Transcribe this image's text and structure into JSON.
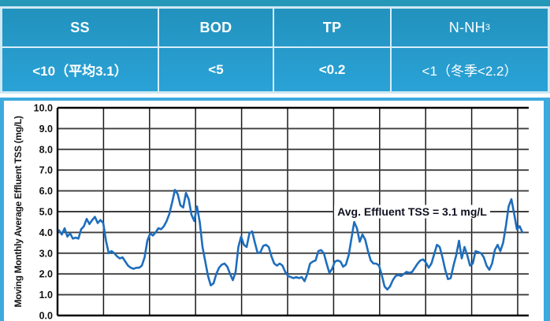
{
  "colors": {
    "table_fill_top": "#2292bd",
    "table_fill_bottom": "#2aa2d7",
    "table_divider": "#d9eefa",
    "panel_border_cyan": "#3caade",
    "top_strip_teal": "#2598b8",
    "line_blue": "#1e6ebd",
    "gridline_dark": "#3d3d3d",
    "axis_black": "#000000",
    "annotation_text": "#101020"
  },
  "table": {
    "columns": [
      {
        "header": "SS",
        "header_sub": "",
        "value": "<10（平均3.1）"
      },
      {
        "header": "BOD",
        "header_sub": "",
        "value": "<5"
      },
      {
        "header": "TP",
        "header_sub": "",
        "value": "<0.2"
      },
      {
        "header": "N-NH",
        "header_sub": "3",
        "value": "<1（冬季<2.2）"
      }
    ]
  },
  "chart_data": {
    "type": "line",
    "title": "",
    "xlabel": "",
    "ylabel": "Moving Monthly Average Effluent TSS (mg/L)",
    "ylim": [
      0,
      10
    ],
    "ytick_labels": [
      "10.0",
      "9.0",
      "8.0",
      "7.0",
      "6.0",
      "5.0",
      "4.0",
      "3.0",
      "2.0",
      "1.0",
      "0.0"
    ],
    "x_gridline_count": 10,
    "grid": true,
    "legend_position": "none",
    "annotation": "Avg. Effluent TSS = 3.1 mg/L",
    "annotation_y_value": 5.0,
    "average_value_mg_per_L": 3.1,
    "series": [
      {
        "name": "Moving monthly average effluent TSS",
        "values": [
          4.1,
          3.9,
          4.2,
          3.8,
          3.95,
          3.7,
          3.75,
          3.7,
          4.15,
          4.3,
          4.65,
          4.4,
          4.6,
          4.75,
          4.45,
          4.6,
          4.45,
          3.6,
          3.0,
          3.1,
          3.0,
          2.85,
          2.75,
          2.8,
          2.6,
          2.4,
          2.3,
          2.25,
          2.3,
          2.3,
          2.4,
          2.8,
          3.6,
          3.95,
          3.85,
          4.0,
          4.2,
          4.15,
          4.3,
          4.55,
          4.9,
          5.45,
          6.05,
          5.85,
          5.3,
          5.2,
          5.9,
          5.6,
          4.85,
          4.55,
          5.25,
          4.5,
          3.3,
          2.6,
          1.9,
          1.45,
          1.55,
          2.0,
          2.3,
          2.45,
          2.5,
          2.35,
          2.0,
          1.7,
          2.1,
          3.3,
          3.8,
          3.4,
          3.3,
          3.95,
          4.05,
          3.5,
          3.0,
          3.05,
          3.35,
          3.4,
          3.3,
          2.85,
          2.5,
          2.4,
          2.5,
          2.4,
          2.1,
          1.9,
          1.85,
          1.8,
          1.85,
          1.8,
          1.85,
          1.65,
          2.0,
          2.5,
          2.6,
          2.65,
          3.1,
          3.15,
          3.0,
          2.5,
          2.05,
          2.25,
          2.6,
          2.65,
          2.6,
          2.35,
          2.45,
          2.9,
          3.7,
          4.5,
          4.2,
          3.55,
          3.9,
          3.65,
          3.1,
          2.65,
          2.5,
          2.5,
          2.4,
          1.95,
          1.4,
          1.25,
          1.4,
          1.7,
          1.9,
          1.95,
          1.9,
          2.0,
          2.1,
          2.05,
          2.1,
          2.3,
          2.5,
          2.65,
          2.7,
          2.55,
          2.3,
          2.5,
          2.95,
          3.4,
          3.3,
          2.8,
          2.2,
          1.75,
          1.8,
          2.4,
          2.9,
          3.6,
          2.75,
          3.3,
          2.9,
          2.4,
          2.5,
          3.1,
          3.05,
          3.0,
          2.8,
          2.4,
          2.2,
          2.5,
          3.15,
          3.4,
          3.1,
          3.5,
          4.3,
          5.25,
          5.6,
          4.9,
          4.15,
          4.3,
          4.0
        ]
      }
    ]
  }
}
